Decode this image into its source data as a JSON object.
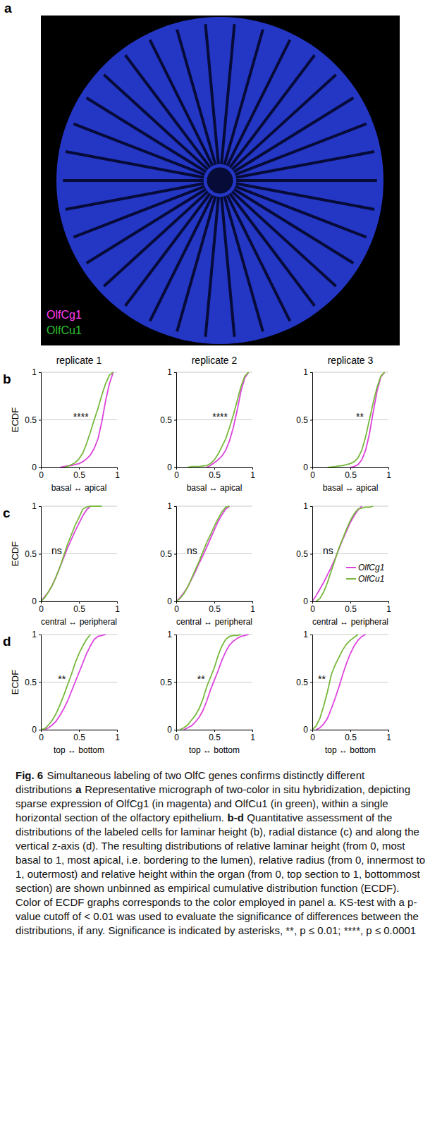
{
  "micrograph": {
    "letter": "a",
    "labels": [
      {
        "text": "OlfCg1",
        "color": "#ff3cf0"
      },
      {
        "text": "OlfCu1",
        "color": "#2ec02e"
      }
    ]
  },
  "rows": [
    {
      "letter": "b"
    },
    {
      "letter": "c"
    },
    {
      "letter": "d"
    }
  ],
  "columns": [
    "replicate 1",
    "replicate 2",
    "replicate 3"
  ],
  "chart_data": [
    {
      "type": "line",
      "x_label": "basal ↔ apical",
      "y_label": "ECDF",
      "annotation": "****",
      "xlim": [
        0,
        1
      ],
      "ylim": [
        0,
        1
      ],
      "xticks": [
        0,
        0.5,
        1
      ],
      "yticks": [
        0,
        0.5,
        1
      ],
      "grid": true,
      "x": [
        0,
        0.05,
        0.1,
        0.15,
        0.2,
        0.25,
        0.3,
        0.35,
        0.4,
        0.45,
        0.5,
        0.55,
        0.6,
        0.65,
        0.7,
        0.75,
        0.8,
        0.85,
        0.9,
        0.95,
        1
      ],
      "series": [
        {
          "color": "#dd44dd",
          "values": [
            null,
            null,
            null,
            null,
            null,
            0,
            0.01,
            0.015,
            0.02,
            0.03,
            0.04,
            0.06,
            0.09,
            0.13,
            0.2,
            0.3,
            0.48,
            0.7,
            0.88,
            1,
            null
          ]
        },
        {
          "color": "#78b83c",
          "values": [
            null,
            null,
            null,
            null,
            null,
            null,
            0,
            0.01,
            0.03,
            0.05,
            0.09,
            0.15,
            0.25,
            0.37,
            0.5,
            0.62,
            0.76,
            0.88,
            0.97,
            1,
            null
          ]
        }
      ]
    },
    {
      "type": "line",
      "x_label": "basal ↔ apical",
      "annotation": "****",
      "xlim": [
        0,
        1
      ],
      "ylim": [
        0,
        1
      ],
      "xticks": [
        0,
        0.5,
        1
      ],
      "yticks": [
        0,
        0.5,
        1
      ],
      "grid": true,
      "x": [
        0,
        0.05,
        0.1,
        0.15,
        0.2,
        0.25,
        0.3,
        0.35,
        0.4,
        0.45,
        0.5,
        0.55,
        0.6,
        0.65,
        0.7,
        0.75,
        0.8,
        0.85,
        0.9,
        0.95,
        1
      ],
      "series": [
        {
          "color": "#dd44dd",
          "values": [
            null,
            null,
            null,
            null,
            null,
            null,
            null,
            null,
            0,
            0.02,
            0.05,
            0.08,
            0.12,
            0.18,
            0.28,
            0.42,
            0.6,
            0.8,
            0.94,
            1,
            null
          ]
        },
        {
          "color": "#78b83c",
          "values": [
            null,
            null,
            null,
            0,
            0.01,
            0.01,
            0.01,
            0.015,
            0.02,
            0.04,
            0.08,
            0.14,
            0.22,
            0.3,
            0.42,
            0.55,
            0.7,
            0.85,
            0.96,
            1,
            null
          ]
        }
      ]
    },
    {
      "type": "line",
      "x_label": "basal ↔ apical",
      "annotation": "**",
      "xlim": [
        0,
        1
      ],
      "ylim": [
        0,
        1
      ],
      "xticks": [
        0,
        0.5,
        1
      ],
      "yticks": [
        0,
        0.5,
        1
      ],
      "grid": true,
      "x": [
        0,
        0.05,
        0.1,
        0.15,
        0.2,
        0.25,
        0.3,
        0.35,
        0.4,
        0.45,
        0.5,
        0.55,
        0.6,
        0.65,
        0.7,
        0.75,
        0.8,
        0.85,
        0.9,
        0.95,
        1
      ],
      "series": [
        {
          "color": "#dd44dd",
          "values": [
            null,
            null,
            null,
            null,
            null,
            null,
            null,
            null,
            null,
            null,
            0,
            0.01,
            0.03,
            0.08,
            0.18,
            0.35,
            0.58,
            0.8,
            0.95,
            1,
            null
          ]
        },
        {
          "color": "#78b83c",
          "values": [
            null,
            null,
            null,
            null,
            0,
            0.005,
            0.01,
            0.015,
            0.02,
            0.03,
            0.04,
            0.06,
            0.1,
            0.18,
            0.32,
            0.5,
            0.68,
            0.84,
            0.96,
            1,
            null
          ]
        }
      ]
    },
    {
      "type": "line",
      "x_label": "central ↔ peripheral",
      "y_label": "ECDF",
      "annotation": "ns",
      "xlim": [
        0,
        1
      ],
      "ylim": [
        0,
        1
      ],
      "xticks": [
        0,
        0.5,
        1
      ],
      "yticks": [
        0,
        0.5,
        1
      ],
      "grid": true,
      "x": [
        0,
        0.05,
        0.1,
        0.15,
        0.2,
        0.25,
        0.3,
        0.35,
        0.4,
        0.45,
        0.5,
        0.55,
        0.6,
        0.65,
        0.7,
        0.75,
        0.8,
        0.85,
        0.9,
        0.95,
        1
      ],
      "series": [
        {
          "color": "#dd44dd",
          "values": [
            0,
            0.05,
            0.1,
            0.17,
            0.26,
            0.36,
            0.46,
            0.56,
            0.65,
            0.74,
            0.82,
            0.9,
            0.96,
            1,
            null,
            null,
            null,
            null,
            null,
            null,
            null
          ]
        },
        {
          "color": "#78b83c",
          "values": [
            0,
            0.04,
            0.1,
            0.17,
            0.26,
            0.36,
            0.48,
            0.6,
            0.7,
            0.8,
            0.88,
            0.97,
            0.99,
            1,
            1,
            1,
            1,
            null,
            null,
            null,
            null
          ]
        }
      ]
    },
    {
      "type": "line",
      "x_label": "central ↔ peripheral",
      "annotation": "ns",
      "xlim": [
        0,
        1
      ],
      "ylim": [
        0,
        1
      ],
      "xticks": [
        0,
        0.5,
        1
      ],
      "yticks": [
        0,
        0.5,
        1
      ],
      "grid": true,
      "x": [
        0,
        0.05,
        0.1,
        0.15,
        0.2,
        0.25,
        0.3,
        0.35,
        0.4,
        0.45,
        0.5,
        0.55,
        0.6,
        0.65,
        0.7,
        0.75,
        0.8,
        0.85,
        0.9,
        0.95,
        1
      ],
      "series": [
        {
          "color": "#dd44dd",
          "values": [
            0,
            0.04,
            0.09,
            0.15,
            0.23,
            0.31,
            0.4,
            0.48,
            0.57,
            0.66,
            0.75,
            0.84,
            0.91,
            0.97,
            1,
            null,
            null,
            null,
            null,
            null,
            null
          ]
        },
        {
          "color": "#78b83c",
          "values": [
            0,
            0.03,
            0.08,
            0.15,
            0.24,
            0.33,
            0.42,
            0.52,
            0.62,
            0.7,
            0.79,
            0.87,
            0.94,
            0.99,
            1,
            null,
            null,
            null,
            null,
            null,
            null
          ]
        }
      ]
    },
    {
      "type": "line",
      "x_label": "central ↔ peripheral",
      "annotation": "ns",
      "xlim": [
        0,
        1
      ],
      "ylim": [
        0,
        1
      ],
      "xticks": [
        0,
        0.5,
        1
      ],
      "yticks": [
        0,
        0.5,
        1
      ],
      "grid": true,
      "legend": "bottom-right",
      "x": [
        0,
        0.05,
        0.1,
        0.15,
        0.2,
        0.25,
        0.3,
        0.35,
        0.4,
        0.45,
        0.5,
        0.55,
        0.6,
        0.65,
        0.7,
        0.75,
        0.8,
        0.85,
        0.9,
        0.95,
        1
      ],
      "series": [
        {
          "name": "OlfCg1",
          "color": "#dd44dd",
          "values": [
            0,
            0.06,
            0.13,
            0.2,
            0.28,
            0.36,
            0.45,
            0.55,
            0.65,
            0.74,
            0.83,
            0.9,
            0.96,
            1,
            null,
            null,
            null,
            null,
            null,
            null,
            null
          ]
        },
        {
          "name": "OlfCu1",
          "color": "#78b83c",
          "values": [
            null,
            0,
            0.03,
            0.1,
            0.2,
            0.32,
            0.44,
            0.56,
            0.66,
            0.76,
            0.85,
            0.92,
            0.97,
            0.98,
            0.99,
            0.99,
            1,
            null,
            null,
            null,
            null
          ]
        }
      ]
    },
    {
      "type": "line",
      "x_label": "top ↔ bottom",
      "y_label": "ECDF",
      "annotation": "**",
      "xlim": [
        0,
        1
      ],
      "ylim": [
        0,
        1
      ],
      "xticks": [
        0,
        0.5,
        1
      ],
      "yticks": [
        0,
        0.5,
        1
      ],
      "grid": true,
      "x": [
        0,
        0.05,
        0.1,
        0.15,
        0.2,
        0.25,
        0.3,
        0.35,
        0.4,
        0.45,
        0.5,
        0.55,
        0.6,
        0.65,
        0.7,
        0.75,
        0.8,
        0.85,
        0.9,
        0.95,
        1
      ],
      "series": [
        {
          "color": "#dd44dd",
          "values": [
            null,
            0,
            0.02,
            0.05,
            0.09,
            0.15,
            0.22,
            0.3,
            0.4,
            0.5,
            0.6,
            0.7,
            0.8,
            0.88,
            0.95,
            0.98,
            0.99,
            1,
            null,
            null,
            null
          ]
        },
        {
          "color": "#78b83c",
          "values": [
            0,
            0.01,
            0.05,
            0.1,
            0.17,
            0.26,
            0.36,
            0.47,
            0.58,
            0.7,
            0.8,
            0.88,
            0.95,
            1,
            null,
            null,
            null,
            null,
            null,
            null,
            null
          ]
        }
      ]
    },
    {
      "type": "line",
      "x_label": "top ↔ bottom",
      "annotation": "**",
      "xlim": [
        0,
        1
      ],
      "ylim": [
        0,
        1
      ],
      "xticks": [
        0,
        0.5,
        1
      ],
      "yticks": [
        0,
        0.5,
        1
      ],
      "grid": true,
      "x": [
        0,
        0.05,
        0.1,
        0.15,
        0.2,
        0.25,
        0.3,
        0.35,
        0.4,
        0.45,
        0.5,
        0.55,
        0.6,
        0.65,
        0.7,
        0.75,
        0.8,
        0.85,
        0.9,
        0.95,
        1
      ],
      "series": [
        {
          "color": "#dd44dd",
          "values": [
            null,
            null,
            0,
            0.02,
            0.04,
            0.08,
            0.13,
            0.2,
            0.3,
            0.42,
            0.52,
            0.62,
            0.73,
            0.82,
            0.89,
            0.93,
            0.96,
            0.98,
            0.99,
            1,
            null
          ]
        },
        {
          "color": "#78b83c",
          "values": [
            null,
            0,
            0.02,
            0.05,
            0.1,
            0.15,
            0.22,
            0.32,
            0.45,
            0.55,
            0.65,
            0.78,
            0.88,
            0.95,
            0.98,
            0.99,
            0.99,
            1,
            null,
            null,
            null
          ]
        }
      ]
    },
    {
      "type": "line",
      "x_label": "top ↔ bottom",
      "annotation": "**",
      "xlim": [
        0,
        1
      ],
      "ylim": [
        0,
        1
      ],
      "xticks": [
        0,
        0.5,
        1
      ],
      "yticks": [
        0,
        0.5,
        1
      ],
      "grid": true,
      "x": [
        0,
        0.05,
        0.1,
        0.15,
        0.2,
        0.25,
        0.3,
        0.35,
        0.4,
        0.45,
        0.5,
        0.55,
        0.6,
        0.65,
        0.7,
        0.75,
        0.8,
        0.85,
        0.9,
        0.95,
        1
      ],
      "series": [
        {
          "color": "#dd44dd",
          "values": [
            null,
            0,
            0.02,
            0.06,
            0.12,
            0.22,
            0.33,
            0.45,
            0.58,
            0.7,
            0.8,
            0.88,
            0.94,
            0.98,
            1,
            null,
            null,
            null,
            null,
            null,
            null
          ]
        },
        {
          "color": "#78b83c",
          "values": [
            0,
            0.04,
            0.12,
            0.25,
            0.4,
            0.58,
            0.68,
            0.76,
            0.84,
            0.9,
            0.94,
            0.97,
            1,
            null,
            null,
            null,
            null,
            null,
            null,
            null,
            null
          ]
        }
      ]
    }
  ],
  "caption": {
    "label": "Fig. 6",
    "title": "Simultaneous labeling of two OlfC genes confirms distinctly different distributions",
    "items": [
      {
        "letter": "a",
        "text": "Representative micrograph of two-color in situ hybridization, depicting sparse expression of OlfCg1 (in magenta) and OlfCu1 (in green), within a single horizontal section of the olfactory epithelium."
      },
      {
        "letter": "b-d",
        "text": "Quantitative assessment of the distributions of the labeled cells for laminar height (b), radial distance (c) and along the vertical z-axis (d). The resulting distributions of relative laminar height (from 0, most basal to 1, most apical, i.e. bordering to the lumen), relative radius (from 0, innermost to 1, outermost) and relative height within the organ (from 0, top section to 1, bottommost section) are shown unbinned as empirical cumulative distribution function (ECDF). Color of ECDF graphs corresponds to the color employed in panel a. KS-test with a p-value cutoff of < 0.01 was used to evaluate the significance of differences between the distributions, if any. Significance is indicated by asterisks, **, p ≤ 0.01; ****, p ≤ 0.0001"
      }
    ]
  }
}
